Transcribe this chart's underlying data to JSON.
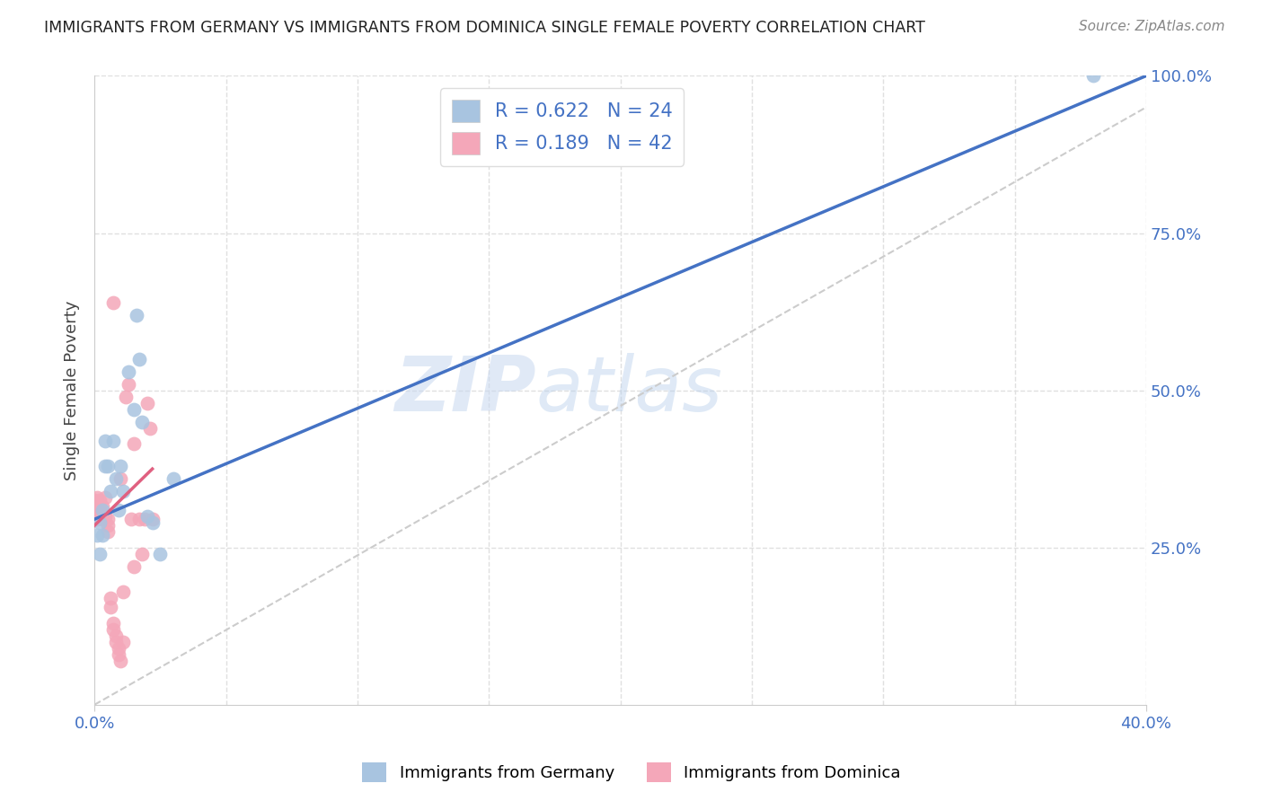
{
  "title": "IMMIGRANTS FROM GERMANY VS IMMIGRANTS FROM DOMINICA SINGLE FEMALE POVERTY CORRELATION CHART",
  "source": "Source: ZipAtlas.com",
  "ylabel": "Single Female Poverty",
  "legend_label_1": "Immigrants from Germany",
  "legend_label_2": "Immigrants from Dominica",
  "R1": "0.622",
  "N1": "24",
  "R2": "0.189",
  "N2": "42",
  "color_germany": "#a8c4e0",
  "color_dominica": "#f4a7b9",
  "color_line_germany": "#4472c4",
  "color_line_dominica": "#e06080",
  "color_axis_labels": "#4472c4",
  "xlim": [
    0.0,
    0.4
  ],
  "ylim": [
    0.0,
    1.0
  ],
  "germany_x": [
    0.002,
    0.003,
    0.004,
    0.004,
    0.005,
    0.006,
    0.007,
    0.008,
    0.009,
    0.01,
    0.011,
    0.013,
    0.015,
    0.016,
    0.017,
    0.018,
    0.02,
    0.022,
    0.025,
    0.03,
    0.001,
    0.002,
    0.003,
    0.38
  ],
  "germany_y": [
    0.29,
    0.27,
    0.38,
    0.42,
    0.38,
    0.34,
    0.42,
    0.36,
    0.31,
    0.38,
    0.34,
    0.53,
    0.47,
    0.62,
    0.55,
    0.45,
    0.3,
    0.29,
    0.24,
    0.36,
    0.27,
    0.24,
    0.31,
    1.0
  ],
  "dominica_x": [
    0.0,
    0.0,
    0.0,
    0.0,
    0.001,
    0.001,
    0.001,
    0.001,
    0.002,
    0.002,
    0.002,
    0.003,
    0.003,
    0.004,
    0.004,
    0.005,
    0.005,
    0.005,
    0.006,
    0.006,
    0.007,
    0.007,
    0.007,
    0.008,
    0.008,
    0.009,
    0.009,
    0.01,
    0.01,
    0.011,
    0.011,
    0.012,
    0.013,
    0.014,
    0.015,
    0.015,
    0.017,
    0.018,
    0.019,
    0.02,
    0.021,
    0.022
  ],
  "dominica_y": [
    0.295,
    0.305,
    0.315,
    0.325,
    0.295,
    0.305,
    0.315,
    0.33,
    0.305,
    0.315,
    0.325,
    0.295,
    0.315,
    0.3,
    0.33,
    0.275,
    0.285,
    0.295,
    0.155,
    0.17,
    0.12,
    0.13,
    0.64,
    0.1,
    0.11,
    0.08,
    0.09,
    0.07,
    0.36,
    0.1,
    0.18,
    0.49,
    0.51,
    0.295,
    0.22,
    0.415,
    0.295,
    0.24,
    0.295,
    0.48,
    0.44,
    0.295
  ],
  "blue_line_x0": 0.0,
  "blue_line_y0": 0.295,
  "blue_line_x1": 0.4,
  "blue_line_y1": 1.0,
  "pink_line_x0": 0.0,
  "pink_line_y0": 0.285,
  "pink_line_x1": 0.022,
  "pink_line_y1": 0.375,
  "ref_line_x0": 0.0,
  "ref_line_y0": 0.0,
  "ref_line_x1": 0.4,
  "ref_line_y1": 0.95,
  "watermark_zip": "ZIP",
  "watermark_atlas": "atlas",
  "background_color": "#ffffff",
  "grid_color": "#e0e0e0"
}
